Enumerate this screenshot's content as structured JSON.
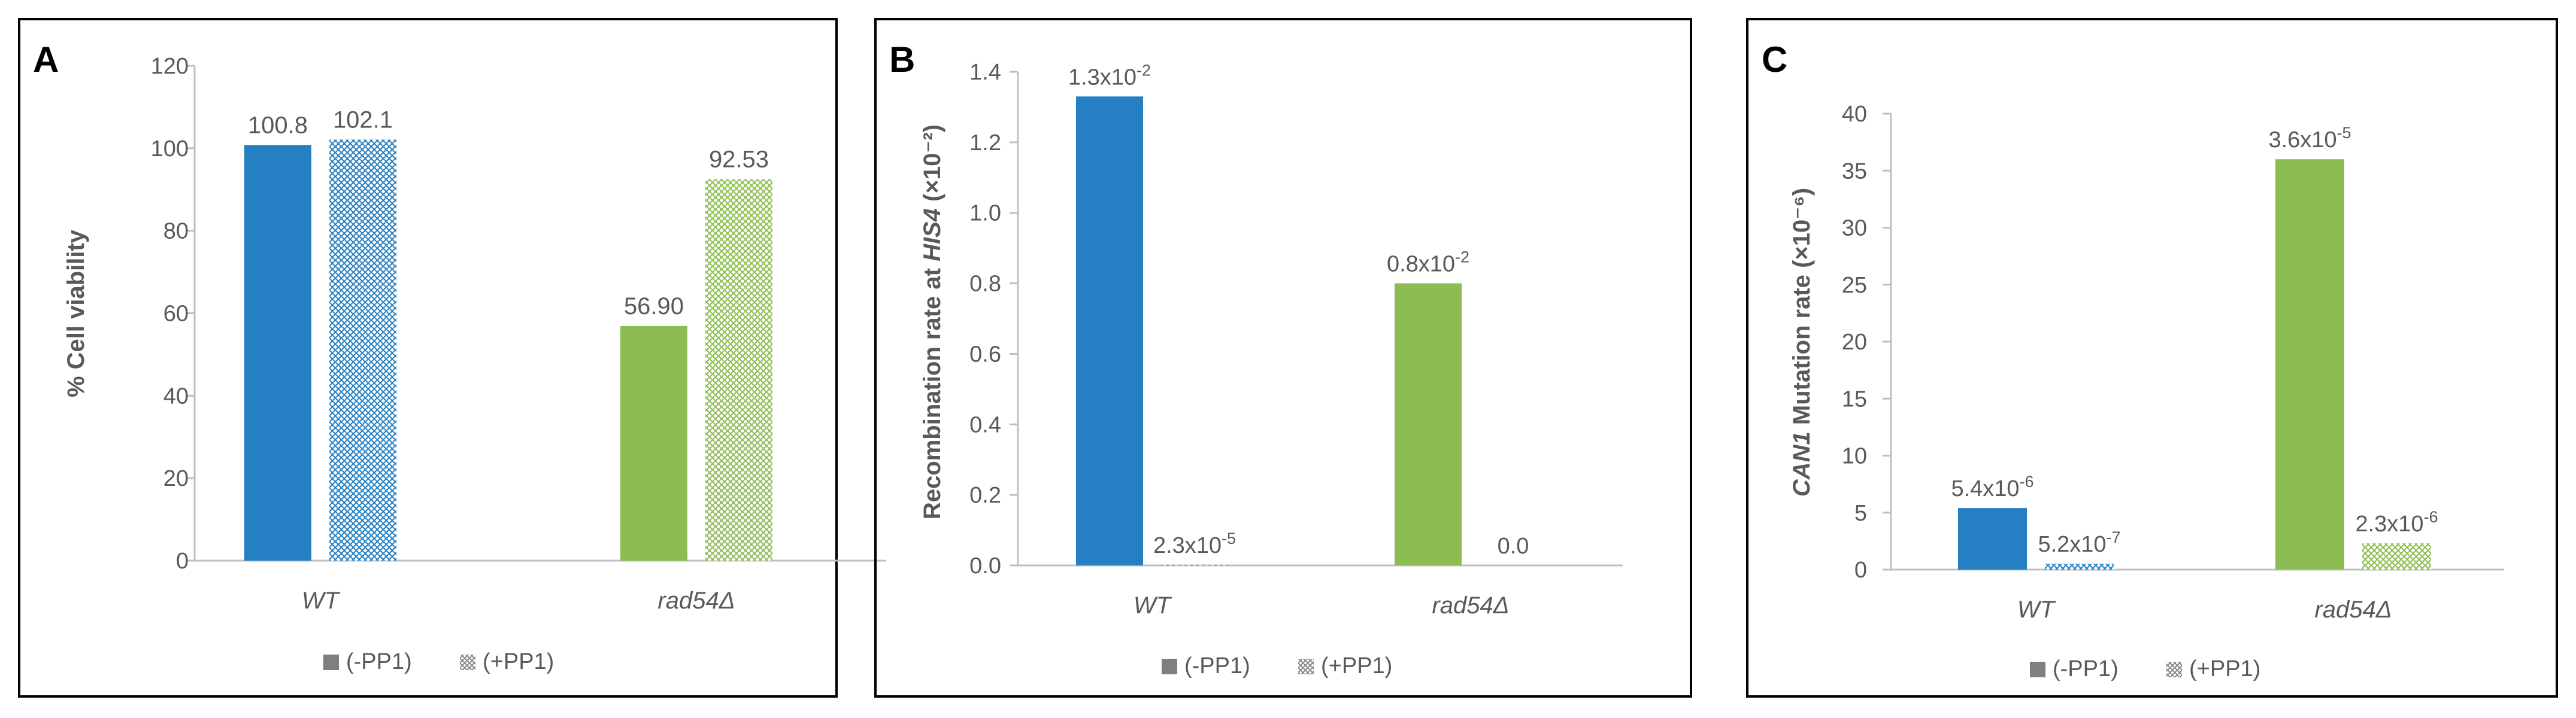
{
  "panels": [
    {
      "letter": "A"
    },
    {
      "letter": "B"
    },
    {
      "letter": "C"
    }
  ],
  "colors": {
    "wt": "#2580c3",
    "rad54": "#8dbd52",
    "axis": "#bfbfbf",
    "text": "#595959",
    "legend_swatch": "#7f7f7f"
  },
  "chart_data": [
    {
      "type": "bar",
      "title": "",
      "xlabel": "",
      "ylabel": "% Cell viability",
      "categories": [
        "WT",
        "rad54Δ"
      ],
      "series": [
        {
          "name": "(-PP1)",
          "pattern": "solid",
          "values": [
            100.8,
            56.9
          ],
          "labels": [
            "100.8",
            "56.90"
          ]
        },
        {
          "name": "(+PP1)",
          "pattern": "hatched",
          "values": [
            102.1,
            92.53
          ],
          "labels": [
            "102.1",
            "92.53"
          ]
        }
      ],
      "ylim": [
        0,
        120
      ],
      "yticks": [
        "0",
        "20",
        "40",
        "60",
        "80",
        "100",
        "120"
      ],
      "grid": false,
      "legend": "bottom"
    },
    {
      "type": "bar",
      "title": "",
      "xlabel": "",
      "ylabel": "Recombination rate at HIS4 (×10⁻²)",
      "categories": [
        "WT",
        "rad54Δ"
      ],
      "series": [
        {
          "name": "(-PP1)",
          "pattern": "solid",
          "values": [
            1.33,
            0.8
          ],
          "labels": [
            "1.3x10-2",
            "0.8x10-2"
          ]
        },
        {
          "name": "(+PP1)",
          "pattern": "hatched",
          "values": [
            0.002,
            0.0
          ],
          "labels": [
            "2.3x10-5",
            "0.0"
          ]
        }
      ],
      "ylim": [
        0,
        1.4
      ],
      "yticks": [
        "0.0",
        "0.2",
        "0.4",
        "0.6",
        "0.8",
        "1.0",
        "1.2",
        "1.4"
      ],
      "grid": false,
      "legend": "bottom"
    },
    {
      "type": "bar",
      "title": "",
      "xlabel": "",
      "ylabel": "CAN1 Mutation rate (×10⁻⁶)",
      "categories": [
        "WT",
        "rad54Δ"
      ],
      "series": [
        {
          "name": "(-PP1)",
          "pattern": "solid",
          "values": [
            5.4,
            36.0
          ],
          "labels": [
            "5.4x10-6",
            "3.6x10-5"
          ]
        },
        {
          "name": "(+PP1)",
          "pattern": "hatched",
          "values": [
            0.52,
            2.3
          ],
          "labels": [
            "5.2x10-7",
            "2.3x10-6"
          ]
        }
      ],
      "ylim": [
        0,
        40
      ],
      "yticks": [
        "0",
        "5",
        "10",
        "15",
        "20",
        "25",
        "30",
        "35",
        "40"
      ],
      "grid": false,
      "legend": "bottom"
    }
  ]
}
